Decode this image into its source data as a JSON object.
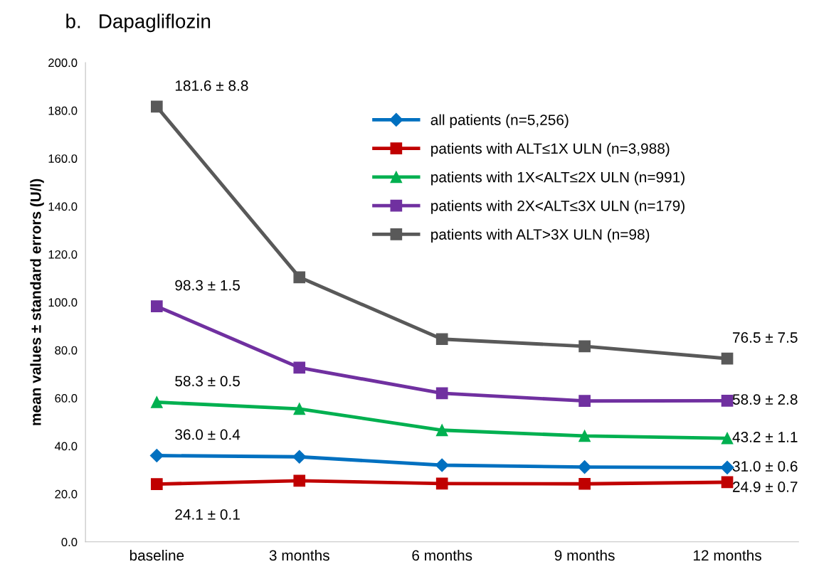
{
  "chart_data": {
    "type": "line",
    "title": "b.   Dapagliflozin",
    "ylabel": "mean values ± standard errors (U/l)",
    "categories": [
      "baseline",
      "3 months",
      "6 months",
      "9 months",
      "12 months"
    ],
    "series": [
      {
        "name": "all patients (n=5,256)",
        "color": "#0070c0",
        "marker": "diamond",
        "values": [
          36.0,
          35.5,
          32.0,
          31.2,
          31.0
        ]
      },
      {
        "name": "patients with ALT≤1X ULN (n=3,988)",
        "color": "#c00000",
        "marker": "square",
        "values": [
          24.1,
          25.5,
          24.3,
          24.2,
          24.9
        ]
      },
      {
        "name": "patients with 1X<ALT≤2X ULN (n=991)",
        "color": "#00b050",
        "marker": "triangle",
        "values": [
          58.3,
          55.5,
          46.6,
          44.2,
          43.2
        ]
      },
      {
        "name": "patients with 2X<ALT≤3X ULN (n=179)",
        "color": "#7030a0",
        "marker": "square",
        "values": [
          98.3,
          72.7,
          62.0,
          58.8,
          58.9
        ]
      },
      {
        "name": "patients with ALT>3X ULN (n=98)",
        "color": "#595959",
        "marker": "square",
        "values": [
          181.6,
          110.4,
          84.6,
          81.6,
          76.5
        ]
      }
    ],
    "ylim": [
      0,
      200
    ],
    "yticks": [
      {
        "value": 0,
        "label": "0.0"
      },
      {
        "value": 20,
        "label": "20.0"
      },
      {
        "value": 40,
        "label": "40.0"
      },
      {
        "value": 60,
        "label": "60.0"
      },
      {
        "value": 80,
        "label": "80.0"
      },
      {
        "value": 100,
        "label": "100.0"
      },
      {
        "value": 120,
        "label": "120.0"
      },
      {
        "value": 140,
        "label": "140.0"
      },
      {
        "value": 160,
        "label": "160.0"
      },
      {
        "value": 180,
        "label": "180.0"
      },
      {
        "value": 200,
        "label": "200.0"
      }
    ],
    "annotations": [
      {
        "text": "181.6 ± 8.8",
        "x": "baseline",
        "y": 181.6
      },
      {
        "text": "98.3 ± 1.5",
        "x": "baseline",
        "y": 98.3
      },
      {
        "text": "58.3 ± 0.5",
        "x": "baseline",
        "y": 58.3
      },
      {
        "text": "36.0 ± 0.4",
        "x": "baseline",
        "y": 36.0
      },
      {
        "text": "24.1 ± 0.1",
        "x": "baseline",
        "y": 24.1
      },
      {
        "text": "76.5 ± 7.5",
        "x": "12 months",
        "y": 76.5
      },
      {
        "text": "58.9 ± 2.8",
        "x": "12 months",
        "y": 58.9
      },
      {
        "text": "43.2 ± 1.1",
        "x": "12 months",
        "y": 43.2
      },
      {
        "text": "31.0 ± 0.6",
        "x": "12 months",
        "y": 31.0
      },
      {
        "text": "24.9 ± 0.7",
        "x": "12 months",
        "y": 24.9
      }
    ],
    "legend": "top right",
    "grid": false,
    "line_style": "solid"
  }
}
